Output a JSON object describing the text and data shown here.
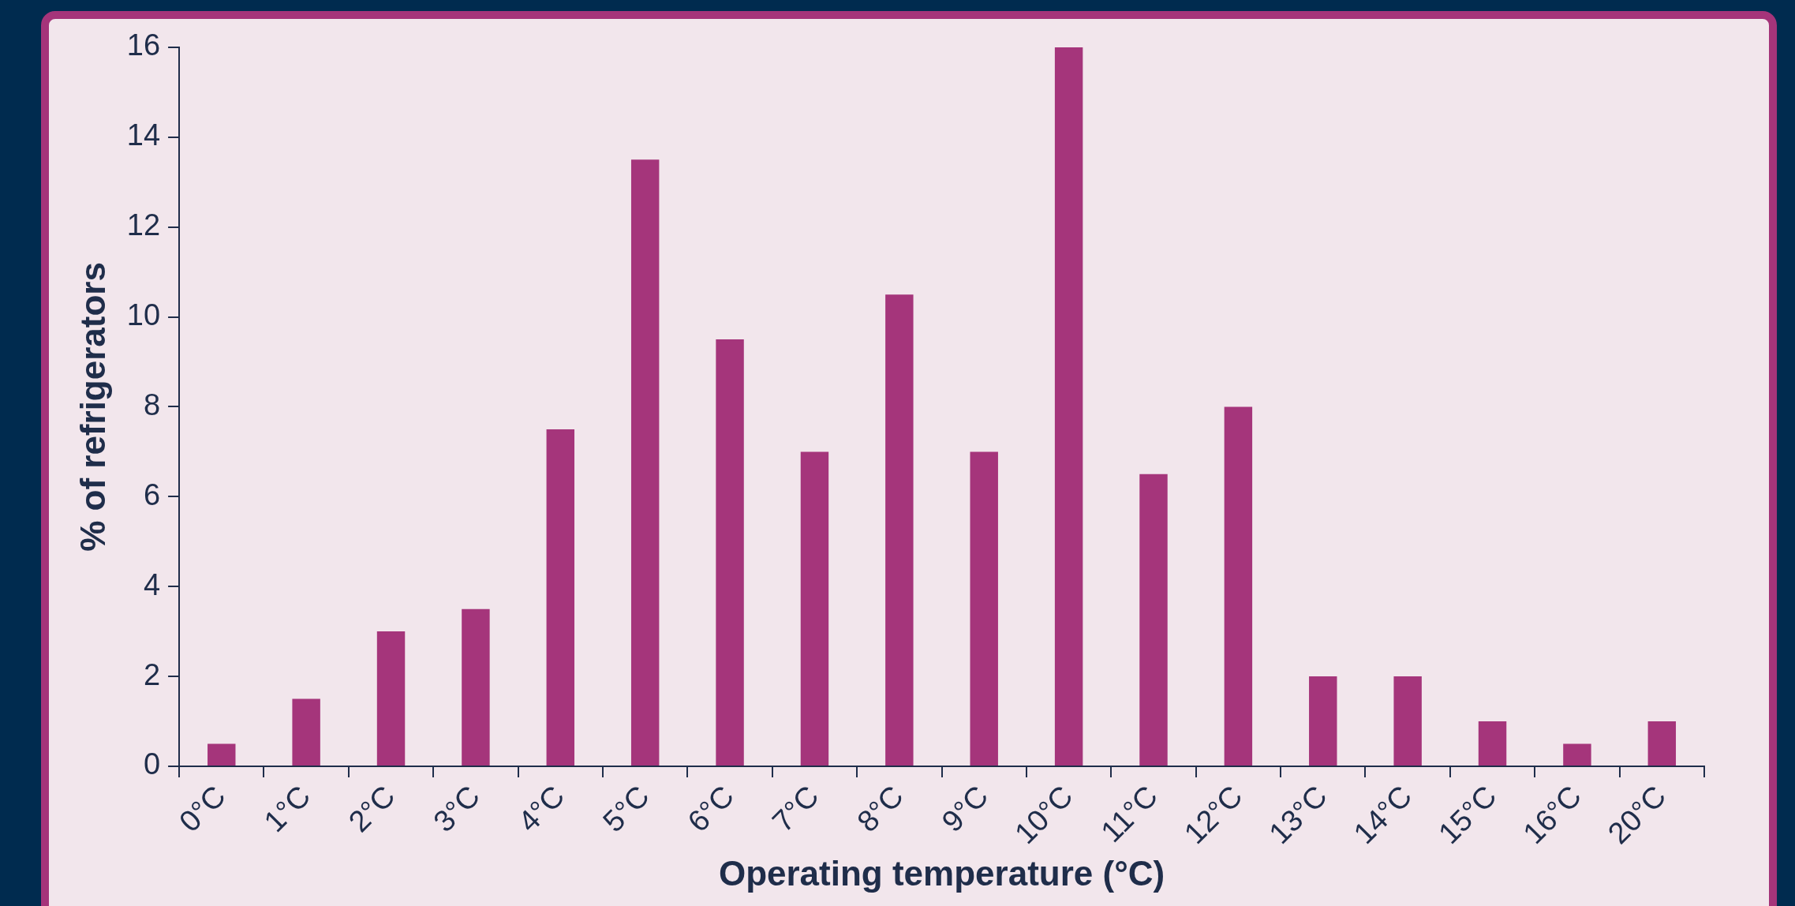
{
  "chart_data": {
    "type": "bar",
    "xlabel": "Operating temperature (°C)",
    "ylabel": "% of refrigerators",
    "categories": [
      "0°C",
      "1°C",
      "2°C",
      "3°C",
      "4°C",
      "5°C",
      "6°C",
      "7°C",
      "8°C",
      "9°C",
      "10°C",
      "11°C",
      "12°C",
      "13°C",
      "14°C",
      "15°C",
      "16°C",
      "20°C"
    ],
    "values": [
      0.5,
      1.5,
      3,
      3.5,
      7.5,
      13.5,
      9.5,
      7,
      10.5,
      7,
      16,
      6.5,
      8,
      2,
      2,
      1,
      0.5,
      1
    ],
    "color": "#a5357b",
    "ylim": [
      0,
      16
    ],
    "yticks": [
      0,
      2,
      4,
      6,
      8,
      10,
      12,
      14,
      16
    ],
    "grid": false,
    "legend": false
  }
}
